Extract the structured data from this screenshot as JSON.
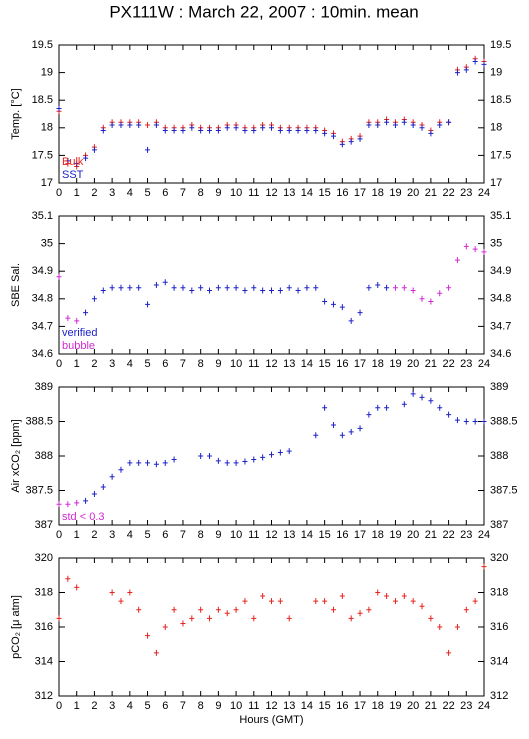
{
  "chart_data": [
    {
      "type": "scatter",
      "title": "PX111W : March 22, 2007 : 10min. mean",
      "ylabel": "Temp. [°C]",
      "x": [
        0,
        0.5,
        1,
        1.5,
        2,
        2.5,
        3,
        3.5,
        4,
        4.5,
        5,
        5.5,
        6,
        6.5,
        7,
        7.5,
        8,
        8.5,
        9,
        9.5,
        10,
        10.5,
        11,
        11.5,
        12,
        12.5,
        13,
        13.5,
        14,
        14.5,
        15,
        15.5,
        16,
        16.5,
        17,
        17.5,
        18,
        18.5,
        19,
        19.5,
        20,
        20.5,
        21,
        21.5,
        22,
        22.5,
        23,
        23.5,
        24
      ],
      "series": [
        {
          "name": "Bulk",
          "color": "#e8221c",
          "values": [
            18.3,
            17.35,
            17.3,
            17.5,
            17.65,
            18.0,
            18.1,
            18.1,
            18.1,
            18.1,
            18.05,
            18.1,
            18.0,
            18.0,
            18.0,
            18.05,
            18.0,
            18.0,
            18.0,
            18.05,
            18.05,
            18.0,
            18.0,
            18.05,
            18.05,
            18.0,
            18.0,
            18.0,
            18.0,
            18.0,
            17.95,
            17.9,
            17.75,
            17.8,
            17.85,
            18.1,
            18.1,
            18.15,
            18.1,
            18.15,
            18.1,
            18.05,
            17.95,
            18.1,
            18.1,
            19.05,
            19.1,
            19.25,
            19.2
          ]
        },
        {
          "name": "SST",
          "color": "#1c22c8",
          "values": [
            18.35,
            17.4,
            17.35,
            17.45,
            17.6,
            17.95,
            18.05,
            18.05,
            18.05,
            18.05,
            17.6,
            18.05,
            17.95,
            17.95,
            17.95,
            18.0,
            17.95,
            17.95,
            17.95,
            18.0,
            18.0,
            17.95,
            17.95,
            18.0,
            18.0,
            17.95,
            17.95,
            17.95,
            17.95,
            17.95,
            17.9,
            17.85,
            17.7,
            17.75,
            17.8,
            18.05,
            18.05,
            18.1,
            18.05,
            18.1,
            18.05,
            18.0,
            17.9,
            18.05,
            18.1,
            19.0,
            19.05,
            19.2,
            19.15
          ]
        }
      ],
      "xlim": [
        0,
        24
      ],
      "xticks": [
        0,
        1,
        2,
        3,
        4,
        5,
        6,
        7,
        8,
        9,
        10,
        11,
        12,
        13,
        14,
        15,
        16,
        17,
        18,
        19,
        20,
        21,
        22,
        23,
        24
      ],
      "ylim": [
        17,
        19.5
      ],
      "yticks": [
        17,
        17.5,
        18,
        18.5,
        19,
        19.5
      ]
    },
    {
      "type": "scatter",
      "ylabel": "SBE Sal.",
      "x": [
        0,
        0.5,
        1,
        1.5,
        2,
        2.5,
        3,
        3.5,
        4,
        4.5,
        5,
        5.5,
        6,
        6.5,
        7,
        7.5,
        8,
        8.5,
        9,
        9.5,
        10,
        10.5,
        11,
        11.5,
        12,
        12.5,
        13,
        13.5,
        14,
        14.5,
        15,
        15.5,
        16,
        16.5,
        17,
        17.5,
        18,
        18.5,
        19,
        19.5,
        20,
        20.5,
        21,
        21.5,
        22,
        22.5,
        23,
        23.5,
        24
      ],
      "series": [
        {
          "name": "verified",
          "color": "#1c22c8",
          "values": [
            null,
            null,
            null,
            34.75,
            34.8,
            34.83,
            34.84,
            34.84,
            34.84,
            34.84,
            34.78,
            34.85,
            34.86,
            34.84,
            34.84,
            34.83,
            34.84,
            34.83,
            34.84,
            34.84,
            34.84,
            34.83,
            34.84,
            34.83,
            34.83,
            34.83,
            34.84,
            34.83,
            34.84,
            34.84,
            34.79,
            34.78,
            34.77,
            34.72,
            34.75,
            34.84,
            34.85,
            34.84,
            null,
            null,
            null,
            null,
            null,
            null,
            null,
            null,
            null,
            null,
            null
          ]
        },
        {
          "name": "bubble",
          "color": "#d22ad2",
          "values": [
            34.88,
            34.73,
            34.72,
            null,
            null,
            null,
            null,
            null,
            null,
            null,
            null,
            null,
            null,
            null,
            null,
            null,
            null,
            null,
            null,
            null,
            null,
            null,
            null,
            null,
            null,
            null,
            null,
            null,
            null,
            null,
            null,
            null,
            null,
            null,
            null,
            null,
            null,
            null,
            34.84,
            34.84,
            34.83,
            34.8,
            34.79,
            34.82,
            34.84,
            34.94,
            34.99,
            34.98,
            34.97
          ]
        }
      ],
      "xlim": [
        0,
        24
      ],
      "xticks": [
        0,
        1,
        2,
        3,
        4,
        5,
        6,
        7,
        8,
        9,
        10,
        11,
        12,
        13,
        14,
        15,
        16,
        17,
        18,
        19,
        20,
        21,
        22,
        23,
        24
      ],
      "ylim": [
        34.6,
        35.1
      ],
      "yticks": [
        34.6,
        34.7,
        34.8,
        34.9,
        35,
        35.1
      ]
    },
    {
      "type": "scatter",
      "ylabel": "Air xCO₂ [ppm]",
      "x": [
        0,
        0.5,
        1,
        1.5,
        2,
        2.5,
        3,
        3.5,
        4,
        4.5,
        5,
        5.5,
        6,
        6.5,
        7,
        7.5,
        8,
        8.5,
        9,
        9.5,
        10,
        10.5,
        11,
        11.5,
        12,
        12.5,
        13,
        13.5,
        14,
        14.5,
        15,
        15.5,
        16,
        16.5,
        17,
        17.5,
        18,
        18.5,
        19,
        19.5,
        20,
        20.5,
        21,
        21.5,
        22,
        22.5,
        23,
        23.5,
        24
      ],
      "series": [
        {
          "color": "#1c22c8",
          "values": [
            null,
            null,
            null,
            387.35,
            387.45,
            387.55,
            387.7,
            387.8,
            387.9,
            387.9,
            387.9,
            387.88,
            387.9,
            387.95,
            null,
            null,
            388.0,
            388.0,
            387.93,
            387.9,
            387.9,
            387.92,
            387.95,
            387.98,
            388.02,
            388.05,
            388.07,
            null,
            null,
            388.3,
            388.7,
            388.45,
            388.3,
            388.35,
            388.4,
            388.6,
            388.7,
            388.7,
            null,
            388.75,
            388.9,
            388.85,
            388.8,
            388.7,
            388.6,
            388.52,
            388.5,
            388.5,
            388.5
          ]
        },
        {
          "name": "std < 0.3",
          "color": "#d22ad2",
          "values": [
            387.3,
            387.3,
            387.32,
            null,
            null,
            null,
            null,
            null,
            null,
            null,
            null,
            null,
            null,
            null,
            null,
            null,
            null,
            null,
            null,
            null,
            null,
            null,
            null,
            null,
            null,
            null,
            null,
            null,
            null,
            null,
            null,
            null,
            null,
            null,
            null,
            null,
            null,
            null,
            null,
            null,
            null,
            null,
            null,
            null,
            null,
            null,
            null,
            null,
            null
          ]
        }
      ],
      "xlim": [
        0,
        24
      ],
      "xticks": [
        0,
        1,
        2,
        3,
        4,
        5,
        6,
        7,
        8,
        9,
        10,
        11,
        12,
        13,
        14,
        15,
        16,
        17,
        18,
        19,
        20,
        21,
        22,
        23,
        24
      ],
      "ylim": [
        387,
        389
      ],
      "yticks": [
        387,
        387.5,
        388,
        388.5,
        389
      ]
    },
    {
      "type": "scatter",
      "ylabel": "pCO₂ [μ atm]",
      "xlabel": "Hours (GMT)",
      "x": [
        0,
        0.5,
        1,
        1.5,
        2,
        2.5,
        3,
        3.5,
        4,
        4.5,
        5,
        5.5,
        6,
        6.5,
        7,
        7.5,
        8,
        8.5,
        9,
        9.5,
        10,
        10.5,
        11,
        11.5,
        12,
        12.5,
        13,
        13.5,
        14,
        14.5,
        15,
        15.5,
        16,
        16.5,
        17,
        17.5,
        18,
        18.5,
        19,
        19.5,
        20,
        20.5,
        21,
        21.5,
        22,
        22.5,
        23,
        23.5,
        24
      ],
      "series": [
        {
          "color": "#e8221c",
          "values": [
            316.5,
            318.8,
            318.3,
            null,
            null,
            null,
            318,
            317.5,
            318,
            317,
            315.5,
            314.5,
            316,
            317,
            316.2,
            316.5,
            317,
            316.5,
            317,
            316.8,
            317,
            317.5,
            316.5,
            317.8,
            317.5,
            317.5,
            316.5,
            null,
            null,
            317.5,
            317.5,
            317,
            317.8,
            316.5,
            316.8,
            317,
            318,
            317.8,
            317.5,
            317.8,
            317.5,
            317.2,
            316.5,
            316,
            314.5,
            316,
            317,
            317.5,
            319.5
          ]
        }
      ],
      "xlim": [
        0,
        24
      ],
      "xticks": [
        0,
        1,
        2,
        3,
        4,
        5,
        6,
        7,
        8,
        9,
        10,
        11,
        12,
        13,
        14,
        15,
        16,
        17,
        18,
        19,
        20,
        21,
        22,
        23,
        24
      ],
      "ylim": [
        312,
        320
      ],
      "yticks": [
        312,
        314,
        316,
        318,
        320
      ]
    }
  ]
}
